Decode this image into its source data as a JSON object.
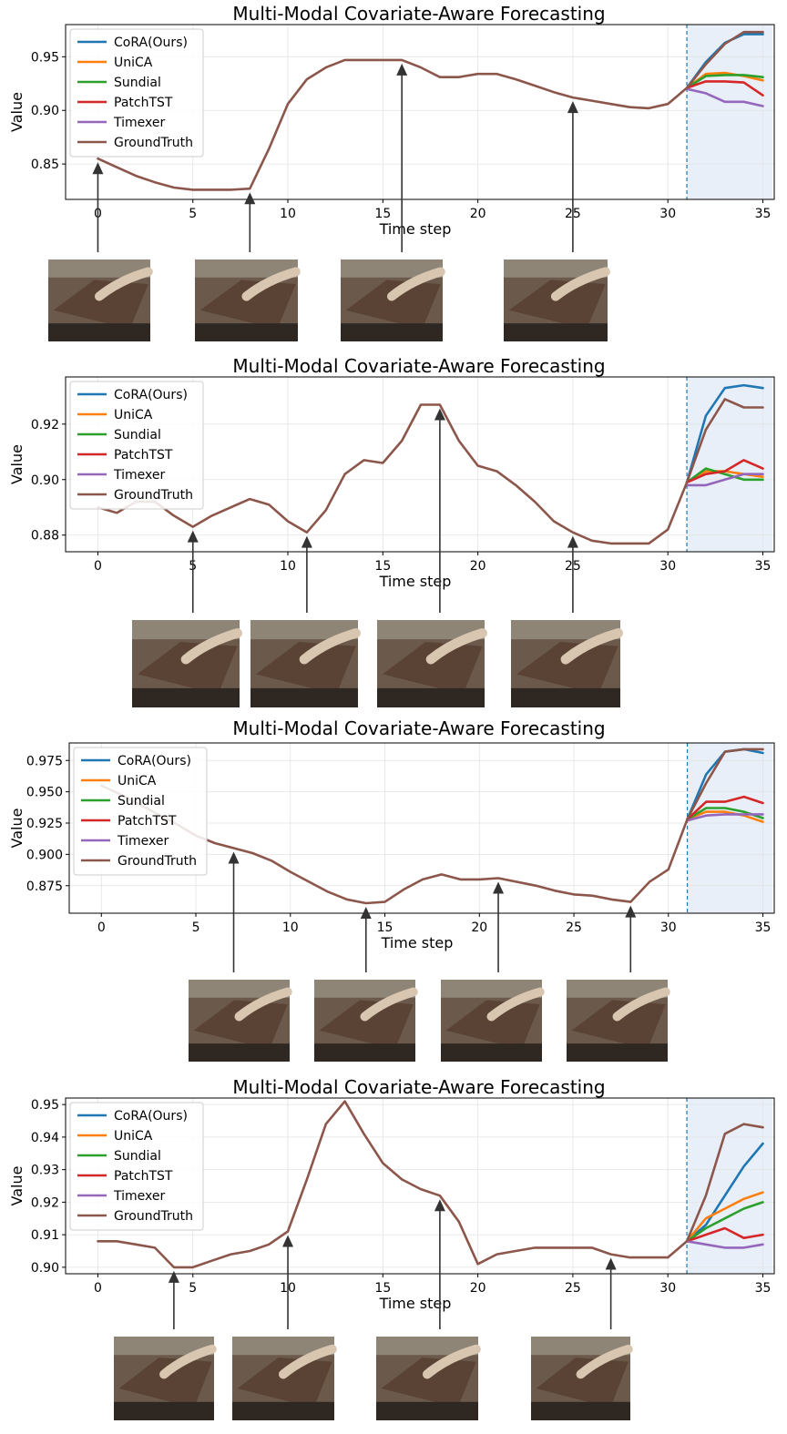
{
  "colors": {
    "CoRA(Ours)": "#1f77b4",
    "UniCA": "#ff7f0e",
    "Sundial": "#2ca02c",
    "PatchTST": "#d62728",
    "Timexer": "#9467bd",
    "GroundTruth": "#8c564b",
    "forecast_region": "#e8eff9",
    "forecast_boundary": "#1f77b4"
  },
  "chart_data": [
    {
      "type": "line",
      "title": "Multi-Modal Covariate-Aware Forecasting",
      "xlabel": "Time step",
      "ylabel": "Value",
      "xlim": [
        -1.7,
        35.6
      ],
      "ylim": [
        0.817,
        0.98
      ],
      "xticks": [
        0,
        5,
        10,
        15,
        20,
        25,
        30,
        35
      ],
      "yticks": [
        0.85,
        0.9,
        0.95
      ],
      "ytick_labels": [
        "0.85",
        "0.90",
        "0.95"
      ],
      "grid": true,
      "legend": "upper left",
      "forecast_start": 31,
      "forecast_region": [
        31,
        35.5
      ],
      "arrows_at": [
        0,
        8,
        16,
        25
      ],
      "series": [
        {
          "name": "GroundTruth",
          "x": [
            0,
            1,
            2,
            3,
            4,
            5,
            6,
            7,
            8,
            9,
            10,
            11,
            12,
            13,
            14,
            15,
            16,
            17,
            18,
            19,
            20,
            21,
            22,
            23,
            24,
            25,
            26,
            27,
            28,
            29,
            30,
            31,
            32,
            33,
            34,
            35
          ],
          "values": [
            0.855,
            0.847,
            0.839,
            0.833,
            0.828,
            0.826,
            0.826,
            0.826,
            0.827,
            0.864,
            0.906,
            0.929,
            0.94,
            0.947,
            0.947,
            0.947,
            0.947,
            0.94,
            0.931,
            0.931,
            0.934,
            0.934,
            0.929,
            0.923,
            0.917,
            0.912,
            0.909,
            0.906,
            0.903,
            0.902,
            0.906,
            0.921,
            0.943,
            0.962,
            0.973,
            0.973
          ]
        },
        {
          "name": "CoRA(Ours)",
          "x": [
            31,
            32,
            33,
            34,
            35
          ],
          "values": [
            0.921,
            0.945,
            0.963,
            0.971,
            0.971
          ]
        },
        {
          "name": "UniCA",
          "x": [
            31,
            32,
            33,
            34,
            35
          ],
          "values": [
            0.921,
            0.934,
            0.935,
            0.932,
            0.928
          ]
        },
        {
          "name": "Sundial",
          "x": [
            31,
            32,
            33,
            34,
            35
          ],
          "values": [
            0.921,
            0.932,
            0.933,
            0.933,
            0.931
          ]
        },
        {
          "name": "PatchTST",
          "x": [
            31,
            32,
            33,
            34,
            35
          ],
          "values": [
            0.921,
            0.927,
            0.927,
            0.926,
            0.914
          ]
        },
        {
          "name": "Timexer",
          "x": [
            31,
            32,
            33,
            34,
            35
          ],
          "values": [
            0.92,
            0.916,
            0.908,
            0.908,
            0.904
          ]
        }
      ]
    },
    {
      "type": "line",
      "title": "Multi-Modal Covariate-Aware Forecasting",
      "xlabel": "Time step",
      "ylabel": "Value",
      "xlim": [
        -1.7,
        35.6
      ],
      "ylim": [
        0.874,
        0.937
      ],
      "xticks": [
        0,
        5,
        10,
        15,
        20,
        25,
        30,
        35
      ],
      "yticks": [
        0.88,
        0.9,
        0.92
      ],
      "ytick_labels": [
        "0.88",
        "0.90",
        "0.92"
      ],
      "grid": true,
      "legend": "upper left",
      "forecast_start": 31,
      "forecast_region": [
        31,
        35.5
      ],
      "arrows_at": [
        5,
        11,
        18,
        25
      ],
      "series": [
        {
          "name": "GroundTruth",
          "x": [
            0,
            1,
            2,
            3,
            4,
            5,
            6,
            7,
            8,
            9,
            10,
            11,
            12,
            13,
            14,
            15,
            16,
            17,
            18,
            19,
            20,
            21,
            22,
            23,
            24,
            25,
            26,
            27,
            28,
            29,
            30,
            31,
            32,
            33,
            34,
            35
          ],
          "values": [
            0.89,
            0.888,
            0.892,
            0.892,
            0.887,
            0.883,
            0.887,
            0.89,
            0.893,
            0.891,
            0.885,
            0.881,
            0.889,
            0.902,
            0.907,
            0.906,
            0.914,
            0.927,
            0.927,
            0.914,
            0.905,
            0.903,
            0.898,
            0.892,
            0.885,
            0.881,
            0.878,
            0.877,
            0.877,
            0.877,
            0.882,
            0.899,
            0.918,
            0.929,
            0.926,
            0.926
          ]
        },
        {
          "name": "CoRA(Ours)",
          "x": [
            31,
            32,
            33,
            34,
            35
          ],
          "values": [
            0.899,
            0.923,
            0.933,
            0.934,
            0.933
          ]
        },
        {
          "name": "UniCA",
          "x": [
            31,
            32,
            33,
            34,
            35
          ],
          "values": [
            0.899,
            0.903,
            0.903,
            0.902,
            0.901
          ]
        },
        {
          "name": "Sundial",
          "x": [
            31,
            32,
            33,
            34,
            35
          ],
          "values": [
            0.899,
            0.904,
            0.902,
            0.9,
            0.9
          ]
        },
        {
          "name": "PatchTST",
          "x": [
            31,
            32,
            33,
            34,
            35
          ],
          "values": [
            0.899,
            0.902,
            0.903,
            0.907,
            0.904
          ]
        },
        {
          "name": "Timexer",
          "x": [
            31,
            32,
            33,
            34,
            35
          ],
          "values": [
            0.898,
            0.898,
            0.9,
            0.902,
            0.902
          ]
        }
      ]
    },
    {
      "type": "line",
      "title": "Multi-Modal Covariate-Aware Forecasting",
      "xlabel": "Time step",
      "ylabel": "Value",
      "xlim": [
        -1.7,
        35.6
      ],
      "ylim": [
        0.853,
        0.989
      ],
      "xticks": [
        0,
        5,
        10,
        15,
        20,
        25,
        30,
        35
      ],
      "yticks": [
        0.875,
        0.9,
        0.925,
        0.95,
        0.975
      ],
      "ytick_labels": [
        "0.875",
        "0.900",
        "0.925",
        "0.950",
        "0.975"
      ],
      "grid": true,
      "legend": "upper left",
      "forecast_start": 31,
      "forecast_region": [
        31,
        35.5
      ],
      "arrows_at": [
        7,
        14,
        21,
        28
      ],
      "series": [
        {
          "name": "GroundTruth",
          "x": [
            0,
            1,
            2,
            3,
            4,
            5,
            6,
            7,
            8,
            9,
            10,
            11,
            12,
            13,
            14,
            15,
            16,
            17,
            18,
            19,
            20,
            21,
            22,
            23,
            24,
            25,
            26,
            27,
            28,
            29,
            30,
            31,
            32,
            33,
            34,
            35
          ],
          "values": [
            0.955,
            0.948,
            0.94,
            0.932,
            0.924,
            0.915,
            0.909,
            0.905,
            0.901,
            0.895,
            0.886,
            0.878,
            0.87,
            0.864,
            0.861,
            0.862,
            0.872,
            0.88,
            0.884,
            0.88,
            0.88,
            0.881,
            0.878,
            0.875,
            0.871,
            0.868,
            0.867,
            0.864,
            0.862,
            0.878,
            0.888,
            0.928,
            0.957,
            0.982,
            0.984,
            0.984
          ]
        },
        {
          "name": "CoRA(Ours)",
          "x": [
            31,
            32,
            33,
            34,
            35
          ],
          "values": [
            0.928,
            0.964,
            0.982,
            0.984,
            0.981
          ]
        },
        {
          "name": "UniCA",
          "x": [
            31,
            32,
            33,
            34,
            35
          ],
          "values": [
            0.928,
            0.934,
            0.934,
            0.931,
            0.926
          ]
        },
        {
          "name": "Sundial",
          "x": [
            31,
            32,
            33,
            34,
            35
          ],
          "values": [
            0.928,
            0.937,
            0.937,
            0.934,
            0.929
          ]
        },
        {
          "name": "PatchTST",
          "x": [
            31,
            32,
            33,
            34,
            35
          ],
          "values": [
            0.928,
            0.942,
            0.942,
            0.946,
            0.941
          ]
        },
        {
          "name": "Timexer",
          "x": [
            31,
            32,
            33,
            34,
            35
          ],
          "values": [
            0.927,
            0.931,
            0.932,
            0.932,
            0.932
          ]
        }
      ]
    },
    {
      "type": "line",
      "title": "Multi-Modal Covariate-Aware Forecasting",
      "xlabel": "Time step",
      "ylabel": "Value",
      "xlim": [
        -1.7,
        35.6
      ],
      "ylim": [
        0.898,
        0.952
      ],
      "xticks": [
        0,
        5,
        10,
        15,
        20,
        25,
        30,
        35
      ],
      "yticks": [
        0.9,
        0.91,
        0.92,
        0.93,
        0.94,
        0.95
      ],
      "ytick_labels": [
        "0.90",
        "0.91",
        "0.92",
        "0.93",
        "0.94",
        "0.95"
      ],
      "grid": true,
      "legend": "upper left",
      "forecast_start": 31,
      "forecast_region": [
        31,
        35.5
      ],
      "arrows_at": [
        4,
        10,
        18,
        27
      ],
      "series": [
        {
          "name": "GroundTruth",
          "x": [
            0,
            1,
            2,
            3,
            4,
            5,
            6,
            7,
            8,
            9,
            10,
            11,
            12,
            13,
            14,
            15,
            16,
            17,
            18,
            19,
            20,
            21,
            22,
            23,
            24,
            25,
            26,
            27,
            28,
            29,
            30,
            31,
            32,
            33,
            34,
            35
          ],
          "values": [
            0.908,
            0.908,
            0.907,
            0.906,
            0.9,
            0.9,
            0.902,
            0.904,
            0.905,
            0.907,
            0.911,
            0.927,
            0.944,
            0.951,
            0.941,
            0.932,
            0.927,
            0.924,
            0.922,
            0.914,
            0.901,
            0.904,
            0.905,
            0.906,
            0.906,
            0.906,
            0.906,
            0.904,
            0.903,
            0.903,
            0.903,
            0.908,
            0.922,
            0.941,
            0.944,
            0.943
          ]
        },
        {
          "name": "CoRA(Ours)",
          "x": [
            31,
            32,
            33,
            34,
            35
          ],
          "values": [
            0.908,
            0.913,
            0.922,
            0.931,
            0.938
          ]
        },
        {
          "name": "UniCA",
          "x": [
            31,
            32,
            33,
            34,
            35
          ],
          "values": [
            0.908,
            0.915,
            0.918,
            0.921,
            0.923
          ]
        },
        {
          "name": "Sundial",
          "x": [
            31,
            32,
            33,
            34,
            35
          ],
          "values": [
            0.908,
            0.912,
            0.915,
            0.918,
            0.92
          ]
        },
        {
          "name": "PatchTST",
          "x": [
            31,
            32,
            33,
            34,
            35
          ],
          "values": [
            0.908,
            0.91,
            0.912,
            0.909,
            0.91
          ]
        },
        {
          "name": "Timexer",
          "x": [
            31,
            32,
            33,
            34,
            35
          ],
          "values": [
            0.908,
            0.907,
            0.906,
            0.906,
            0.907
          ]
        }
      ]
    }
  ]
}
